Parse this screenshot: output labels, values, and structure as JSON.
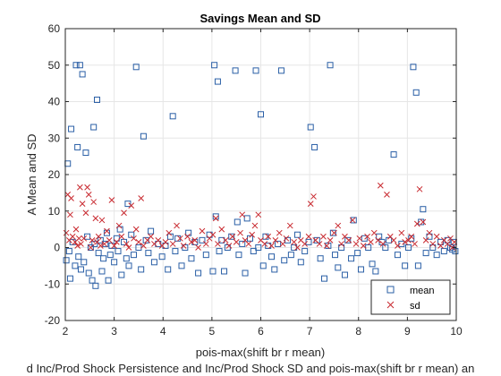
{
  "chart_data": {
    "type": "scatter",
    "title": "Savings Mean and SD",
    "xlabel": "pois-max(shift br r mean)",
    "ylabel": "A Mean and SD",
    "caption": "d Inc/Prod Shock Persistence and Inc/Prod Shock SD and pois-max(shift br r mean) an",
    "xlim": [
      2,
      10
    ],
    "ylim": [
      -20,
      60
    ],
    "xticks": [
      "2",
      "3",
      "4",
      "5",
      "6",
      "7",
      "8",
      "9",
      "10"
    ],
    "yticks": [
      "-20",
      "-10",
      "0",
      "10",
      "20",
      "30",
      "40",
      "50",
      "60"
    ],
    "grid": true,
    "legend_position": "bottom-right",
    "colors": {
      "mean": "#2a5fa6",
      "sd": "#c8292f"
    },
    "series": [
      {
        "name": "mean",
        "marker": "square",
        "points": [
          [
            2.02,
            -3.5
          ],
          [
            2.05,
            23
          ],
          [
            2.08,
            -1
          ],
          [
            2.1,
            -8.5
          ],
          [
            2.12,
            32.5
          ],
          [
            2.15,
            1.5
          ],
          [
            2.2,
            -5
          ],
          [
            2.22,
            50
          ],
          [
            2.25,
            27.5
          ],
          [
            2.27,
            -2.5
          ],
          [
            2.3,
            50
          ],
          [
            2.32,
            -6
          ],
          [
            2.35,
            47.5
          ],
          [
            2.38,
            -4
          ],
          [
            2.42,
            26
          ],
          [
            2.45,
            3
          ],
          [
            2.48,
            -7
          ],
          [
            2.52,
            0
          ],
          [
            2.55,
            -9
          ],
          [
            2.58,
            33
          ],
          [
            2.6,
            1
          ],
          [
            2.62,
            -10.5
          ],
          [
            2.65,
            40.5
          ],
          [
            2.68,
            -1.5
          ],
          [
            2.72,
            2
          ],
          [
            2.75,
            -6.5
          ],
          [
            2.78,
            -3
          ],
          [
            2.82,
            1
          ],
          [
            2.85,
            4
          ],
          [
            2.88,
            -9
          ],
          [
            2.92,
            -2
          ],
          [
            2.95,
            0.5
          ],
          [
            3.0,
            -4
          ],
          [
            3.05,
            2.5
          ],
          [
            3.08,
            -1
          ],
          [
            3.12,
            5
          ],
          [
            3.15,
            -7.5
          ],
          [
            3.2,
            1.5
          ],
          [
            3.25,
            -3
          ],
          [
            3.28,
            12
          ],
          [
            3.3,
            -5
          ],
          [
            3.35,
            3.5
          ],
          [
            3.4,
            -2
          ],
          [
            3.45,
            49.5
          ],
          [
            3.5,
            0
          ],
          [
            3.55,
            -6
          ],
          [
            3.6,
            30.5
          ],
          [
            3.65,
            2
          ],
          [
            3.7,
            -1.5
          ],
          [
            3.75,
            4.5
          ],
          [
            3.82,
            -4
          ],
          [
            3.9,
            1
          ],
          [
            3.98,
            -2.5
          ],
          [
            4.05,
            0.5
          ],
          [
            4.1,
            -6
          ],
          [
            4.15,
            3
          ],
          [
            4.2,
            36
          ],
          [
            4.25,
            -1
          ],
          [
            4.3,
            2.5
          ],
          [
            4.38,
            -5
          ],
          [
            4.45,
            0
          ],
          [
            4.52,
            4
          ],
          [
            4.58,
            -3
          ],
          [
            4.65,
            1.5
          ],
          [
            4.72,
            -7
          ],
          [
            4.8,
            2
          ],
          [
            4.88,
            -2
          ],
          [
            4.95,
            3.5
          ],
          [
            5.02,
            -6.5
          ],
          [
            5.05,
            50
          ],
          [
            5.08,
            8.5
          ],
          [
            5.12,
            45.5
          ],
          [
            5.15,
            -1
          ],
          [
            5.2,
            2
          ],
          [
            5.25,
            -6.5
          ],
          [
            5.32,
            0
          ],
          [
            5.4,
            3
          ],
          [
            5.48,
            48.5
          ],
          [
            5.52,
            7
          ],
          [
            5.55,
            -2
          ],
          [
            5.62,
            1
          ],
          [
            5.68,
            -7
          ],
          [
            5.72,
            8
          ],
          [
            5.78,
            2.5
          ],
          [
            5.85,
            -1
          ],
          [
            5.9,
            48.5
          ],
          [
            5.95,
            0
          ],
          [
            6.0,
            36.5
          ],
          [
            6.05,
            -5
          ],
          [
            6.1,
            3
          ],
          [
            6.15,
            0.5
          ],
          [
            6.22,
            -2.5
          ],
          [
            6.28,
            -6
          ],
          [
            6.35,
            1
          ],
          [
            6.42,
            48.5
          ],
          [
            6.48,
            -3.5
          ],
          [
            6.55,
            2
          ],
          [
            6.62,
            -2
          ],
          [
            6.68,
            0
          ],
          [
            6.75,
            3.5
          ],
          [
            6.82,
            -4
          ],
          [
            6.9,
            -1
          ],
          [
            6.98,
            1.5
          ],
          [
            7.02,
            33
          ],
          [
            7.1,
            27.5
          ],
          [
            7.15,
            2
          ],
          [
            7.22,
            -3
          ],
          [
            7.3,
            -8.5
          ],
          [
            7.38,
            0.5
          ],
          [
            7.42,
            50
          ],
          [
            7.48,
            4
          ],
          [
            7.52,
            -2
          ],
          [
            7.58,
            -5.5
          ],
          [
            7.65,
            0
          ],
          [
            7.72,
            -7.5
          ],
          [
            7.78,
            2
          ],
          [
            7.85,
            -3
          ],
          [
            7.9,
            7.5
          ],
          [
            7.98,
            -1.5
          ],
          [
            8.05,
            -6
          ],
          [
            8.12,
            2.5
          ],
          [
            8.2,
            0
          ],
          [
            8.28,
            -4.5
          ],
          [
            8.35,
            -6.5
          ],
          [
            8.42,
            3
          ],
          [
            8.48,
            1.5
          ],
          [
            8.55,
            0
          ],
          [
            8.62,
            2
          ],
          [
            8.72,
            25.5
          ],
          [
            8.8,
            -2
          ],
          [
            8.88,
            1
          ],
          [
            8.95,
            -5
          ],
          [
            9.02,
            0
          ],
          [
            9.08,
            2.5
          ],
          [
            9.12,
            49.5
          ],
          [
            9.18,
            42.5
          ],
          [
            9.22,
            -5
          ],
          [
            9.28,
            7
          ],
          [
            9.32,
            10.5
          ],
          [
            9.38,
            -1.5
          ],
          [
            9.45,
            3
          ],
          [
            9.52,
            0
          ],
          [
            9.6,
            -2
          ],
          [
            9.68,
            1.5
          ],
          [
            9.75,
            -1
          ],
          [
            9.82,
            2
          ],
          [
            9.88,
            0
          ],
          [
            9.92,
            -0.5
          ],
          [
            9.95,
            1.5
          ],
          [
            9.98,
            -1
          ]
        ]
      },
      {
        "name": "sd",
        "marker": "x",
        "points": [
          [
            2.02,
            4
          ],
          [
            2.05,
            14.5
          ],
          [
            2.08,
            2
          ],
          [
            2.1,
            9
          ],
          [
            2.12,
            13.5
          ],
          [
            2.15,
            3
          ],
          [
            2.2,
            1.5
          ],
          [
            2.22,
            5
          ],
          [
            2.25,
            0.5
          ],
          [
            2.28,
            2.5
          ],
          [
            2.3,
            16.5
          ],
          [
            2.32,
            1
          ],
          [
            2.35,
            12
          ],
          [
            2.38,
            2.5
          ],
          [
            2.42,
            9.5
          ],
          [
            2.45,
            16.5
          ],
          [
            2.48,
            14.5
          ],
          [
            2.52,
            0
          ],
          [
            2.55,
            2
          ],
          [
            2.58,
            12.5
          ],
          [
            2.62,
            8
          ],
          [
            2.65,
            1.5
          ],
          [
            2.68,
            3
          ],
          [
            2.72,
            0.5
          ],
          [
            2.75,
            7.5
          ],
          [
            2.8,
            1
          ],
          [
            2.85,
            4.5
          ],
          [
            2.9,
            2
          ],
          [
            2.95,
            13
          ],
          [
            3.0,
            0.5
          ],
          [
            3.05,
            1.5
          ],
          [
            3.1,
            6
          ],
          [
            3.15,
            3
          ],
          [
            3.2,
            9.5
          ],
          [
            3.25,
            1
          ],
          [
            3.3,
            0
          ],
          [
            3.35,
            11.5
          ],
          [
            3.4,
            2.5
          ],
          [
            3.45,
            5
          ],
          [
            3.5,
            1.5
          ],
          [
            3.55,
            13.5
          ],
          [
            3.6,
            0.5
          ],
          [
            3.68,
            2
          ],
          [
            3.75,
            3
          ],
          [
            3.82,
            1
          ],
          [
            3.9,
            2
          ],
          [
            3.98,
            0.5
          ],
          [
            4.05,
            1.5
          ],
          [
            4.12,
            4
          ],
          [
            4.2,
            1
          ],
          [
            4.28,
            6
          ],
          [
            4.35,
            2.5
          ],
          [
            4.42,
            0.5
          ],
          [
            4.5,
            3
          ],
          [
            4.58,
            1.5
          ],
          [
            4.65,
            2
          ],
          [
            4.72,
            0
          ],
          [
            4.8,
            4.5
          ],
          [
            4.88,
            1
          ],
          [
            4.95,
            2.5
          ],
          [
            5.02,
            3.5
          ],
          [
            5.08,
            8
          ],
          [
            5.12,
            1
          ],
          [
            5.2,
            5
          ],
          [
            5.28,
            2
          ],
          [
            5.35,
            0.5
          ],
          [
            5.42,
            3
          ],
          [
            5.5,
            1.5
          ],
          [
            5.58,
            4
          ],
          [
            5.62,
            9
          ],
          [
            5.68,
            2
          ],
          [
            5.75,
            1
          ],
          [
            5.82,
            3.5
          ],
          [
            5.88,
            6
          ],
          [
            5.95,
            9
          ],
          [
            6.0,
            2
          ],
          [
            6.08,
            1
          ],
          [
            6.15,
            3
          ],
          [
            6.22,
            0.5
          ],
          [
            6.3,
            2
          ],
          [
            6.38,
            4
          ],
          [
            6.45,
            1
          ],
          [
            6.52,
            2.5
          ],
          [
            6.6,
            6
          ],
          [
            6.68,
            1.5
          ],
          [
            6.75,
            0
          ],
          [
            6.82,
            2
          ],
          [
            6.9,
            1
          ],
          [
            6.98,
            3
          ],
          [
            7.02,
            12
          ],
          [
            7.08,
            14
          ],
          [
            7.12,
            2
          ],
          [
            7.2,
            1
          ],
          [
            7.28,
            3
          ],
          [
            7.35,
            0.5
          ],
          [
            7.42,
            2
          ],
          [
            7.5,
            4
          ],
          [
            7.58,
            6
          ],
          [
            7.65,
            1
          ],
          [
            7.72,
            3
          ],
          [
            7.8,
            2
          ],
          [
            7.88,
            7.5
          ],
          [
            7.95,
            1
          ],
          [
            8.02,
            2.5
          ],
          [
            8.1,
            0.5
          ],
          [
            8.18,
            3
          ],
          [
            8.25,
            1.5
          ],
          [
            8.32,
            4
          ],
          [
            8.4,
            2
          ],
          [
            8.45,
            17
          ],
          [
            8.5,
            1
          ],
          [
            8.58,
            14.5
          ],
          [
            8.65,
            3
          ],
          [
            8.72,
            2
          ],
          [
            8.8,
            0.5
          ],
          [
            8.88,
            4
          ],
          [
            8.95,
            1.5
          ],
          [
            9.02,
            2
          ],
          [
            9.08,
            3
          ],
          [
            9.15,
            1
          ],
          [
            9.2,
            6.5
          ],
          [
            9.25,
            16
          ],
          [
            9.32,
            7
          ],
          [
            9.38,
            2
          ],
          [
            9.45,
            4
          ],
          [
            9.52,
            1
          ],
          [
            9.6,
            3
          ],
          [
            9.68,
            0.5
          ],
          [
            9.75,
            2
          ],
          [
            9.82,
            1
          ],
          [
            9.88,
            2.5
          ],
          [
            9.92,
            0
          ],
          [
            9.96,
            1.5
          ]
        ]
      }
    ]
  }
}
